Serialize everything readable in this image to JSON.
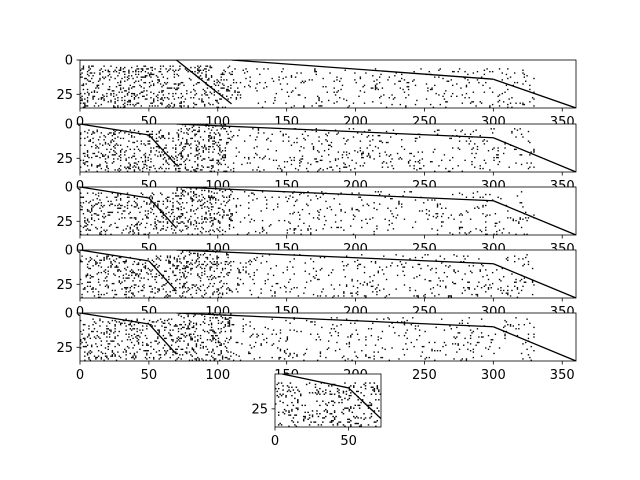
{
  "chart_data": [
    {
      "type": "heatmap",
      "title": "",
      "xlabel": "",
      "ylabel": "",
      "xlim": [
        0,
        360
      ],
      "ylim": [
        35,
        0
      ],
      "xticks": [
        0,
        50,
        100,
        150,
        200,
        250,
        300,
        350
      ],
      "yticks": [
        0,
        25
      ],
      "colormap": [
        "#ffffff",
        "#000000"
      ],
      "segments": [
        {
          "from": [
            0,
            0
          ],
          "to": [
            70,
            0
          ]
        },
        {
          "from": [
            70,
            0
          ],
          "to": [
            110,
            32
          ]
        },
        {
          "from": [
            110,
            0
          ],
          "to": [
            300,
            14
          ]
        },
        {
          "from": [
            300,
            14
          ],
          "to": [
            360,
            35
          ]
        }
      ],
      "blocks": [
        {
          "x_start": 0,
          "x_end": 70,
          "y_start": 4,
          "y_end": 35,
          "density": 0.18
        },
        {
          "x_start": 70,
          "x_end": 110,
          "y_start": 4,
          "y_end": 35,
          "density": 0.14
        },
        {
          "x_start": 110,
          "x_end": 330,
          "y_start": 6,
          "y_end": 35,
          "density": 0.05
        }
      ]
    },
    {
      "type": "heatmap",
      "title": "",
      "xlabel": "",
      "ylabel": "",
      "xlim": [
        0,
        360
      ],
      "ylim": [
        35,
        0
      ],
      "xticks": [
        0,
        50,
        100,
        150,
        200,
        250,
        300,
        350
      ],
      "yticks": [
        0,
        25
      ],
      "colormap": [
        "#ffffff",
        "#000000"
      ],
      "segments": [
        {
          "from": [
            0,
            0
          ],
          "to": [
            50,
            8
          ]
        },
        {
          "from": [
            50,
            8
          ],
          "to": [
            70,
            30
          ]
        },
        {
          "from": [
            70,
            0
          ],
          "to": [
            300,
            10
          ]
        },
        {
          "from": [
            300,
            10
          ],
          "to": [
            360,
            35
          ]
        }
      ],
      "blocks": [
        {
          "x_start": 0,
          "x_end": 70,
          "y_start": 4,
          "y_end": 35,
          "density": 0.14
        },
        {
          "x_start": 70,
          "x_end": 110,
          "y_start": 0,
          "y_end": 35,
          "density": 0.16
        },
        {
          "x_start": 110,
          "x_end": 330,
          "y_start": 3,
          "y_end": 35,
          "density": 0.05
        }
      ]
    },
    {
      "type": "heatmap",
      "title": "",
      "xlabel": "",
      "ylabel": "",
      "xlim": [
        0,
        360
      ],
      "ylim": [
        35,
        0
      ],
      "xticks": [
        0,
        50,
        100,
        150,
        200,
        250,
        300,
        350
      ],
      "yticks": [
        0,
        25
      ],
      "colormap": [
        "#ffffff",
        "#000000"
      ],
      "segments": [
        {
          "from": [
            0,
            0
          ],
          "to": [
            50,
            8
          ]
        },
        {
          "from": [
            50,
            8
          ],
          "to": [
            70,
            30
          ]
        },
        {
          "from": [
            70,
            0
          ],
          "to": [
            300,
            10
          ]
        },
        {
          "from": [
            300,
            10
          ],
          "to": [
            360,
            35
          ]
        }
      ],
      "blocks": [
        {
          "x_start": 0,
          "x_end": 70,
          "y_start": 4,
          "y_end": 35,
          "density": 0.14
        },
        {
          "x_start": 70,
          "x_end": 110,
          "y_start": 0,
          "y_end": 35,
          "density": 0.16
        },
        {
          "x_start": 110,
          "x_end": 330,
          "y_start": 3,
          "y_end": 35,
          "density": 0.05
        }
      ]
    },
    {
      "type": "heatmap",
      "title": "",
      "xlabel": "",
      "ylabel": "",
      "xlim": [
        0,
        360
      ],
      "ylim": [
        35,
        0
      ],
      "xticks": [
        0,
        50,
        100,
        150,
        200,
        250,
        300,
        350
      ],
      "yticks": [
        0,
        25
      ],
      "colormap": [
        "#ffffff",
        "#000000"
      ],
      "segments": [
        {
          "from": [
            0,
            0
          ],
          "to": [
            50,
            8
          ]
        },
        {
          "from": [
            50,
            8
          ],
          "to": [
            70,
            30
          ]
        },
        {
          "from": [
            70,
            0
          ],
          "to": [
            300,
            10
          ]
        },
        {
          "from": [
            300,
            10
          ],
          "to": [
            360,
            35
          ]
        }
      ],
      "blocks": [
        {
          "x_start": 0,
          "x_end": 70,
          "y_start": 4,
          "y_end": 35,
          "density": 0.14
        },
        {
          "x_start": 70,
          "x_end": 110,
          "y_start": 0,
          "y_end": 35,
          "density": 0.16
        },
        {
          "x_start": 110,
          "x_end": 330,
          "y_start": 3,
          "y_end": 35,
          "density": 0.05
        }
      ]
    },
    {
      "type": "heatmap",
      "title": "",
      "xlabel": "",
      "ylabel": "",
      "xlim": [
        0,
        360
      ],
      "ylim": [
        35,
        0
      ],
      "xticks": [
        0,
        50,
        100,
        150,
        200,
        250,
        300,
        350
      ],
      "yticks": [
        0,
        25
      ],
      "colormap": [
        "#ffffff",
        "#000000"
      ],
      "segments": [
        {
          "from": [
            0,
            0
          ],
          "to": [
            50,
            8
          ]
        },
        {
          "from": [
            50,
            8
          ],
          "to": [
            70,
            30
          ]
        },
        {
          "from": [
            70,
            0
          ],
          "to": [
            300,
            10
          ]
        },
        {
          "from": [
            300,
            10
          ],
          "to": [
            360,
            35
          ]
        }
      ],
      "blocks": [
        {
          "x_start": 0,
          "x_end": 70,
          "y_start": 4,
          "y_end": 35,
          "density": 0.14
        },
        {
          "x_start": 70,
          "x_end": 110,
          "y_start": 0,
          "y_end": 35,
          "density": 0.16
        },
        {
          "x_start": 110,
          "x_end": 330,
          "y_start": 3,
          "y_end": 35,
          "density": 0.05
        }
      ]
    },
    {
      "type": "heatmap",
      "title": "",
      "xlabel": "",
      "ylabel": "",
      "xlim": [
        0,
        72
      ],
      "ylim": [
        38,
        0
      ],
      "xticks": [
        0,
        50
      ],
      "yticks": [
        25
      ],
      "colormap": [
        "#ffffff",
        "#000000"
      ],
      "segments": [
        {
          "from": [
            5,
            0
          ],
          "to": [
            50,
            10
          ]
        },
        {
          "from": [
            50,
            10
          ],
          "to": [
            72,
            32
          ]
        }
      ],
      "blocks": [
        {
          "x_start": 0,
          "x_end": 72,
          "y_start": 6,
          "y_end": 38,
          "density": 0.12
        }
      ]
    }
  ]
}
